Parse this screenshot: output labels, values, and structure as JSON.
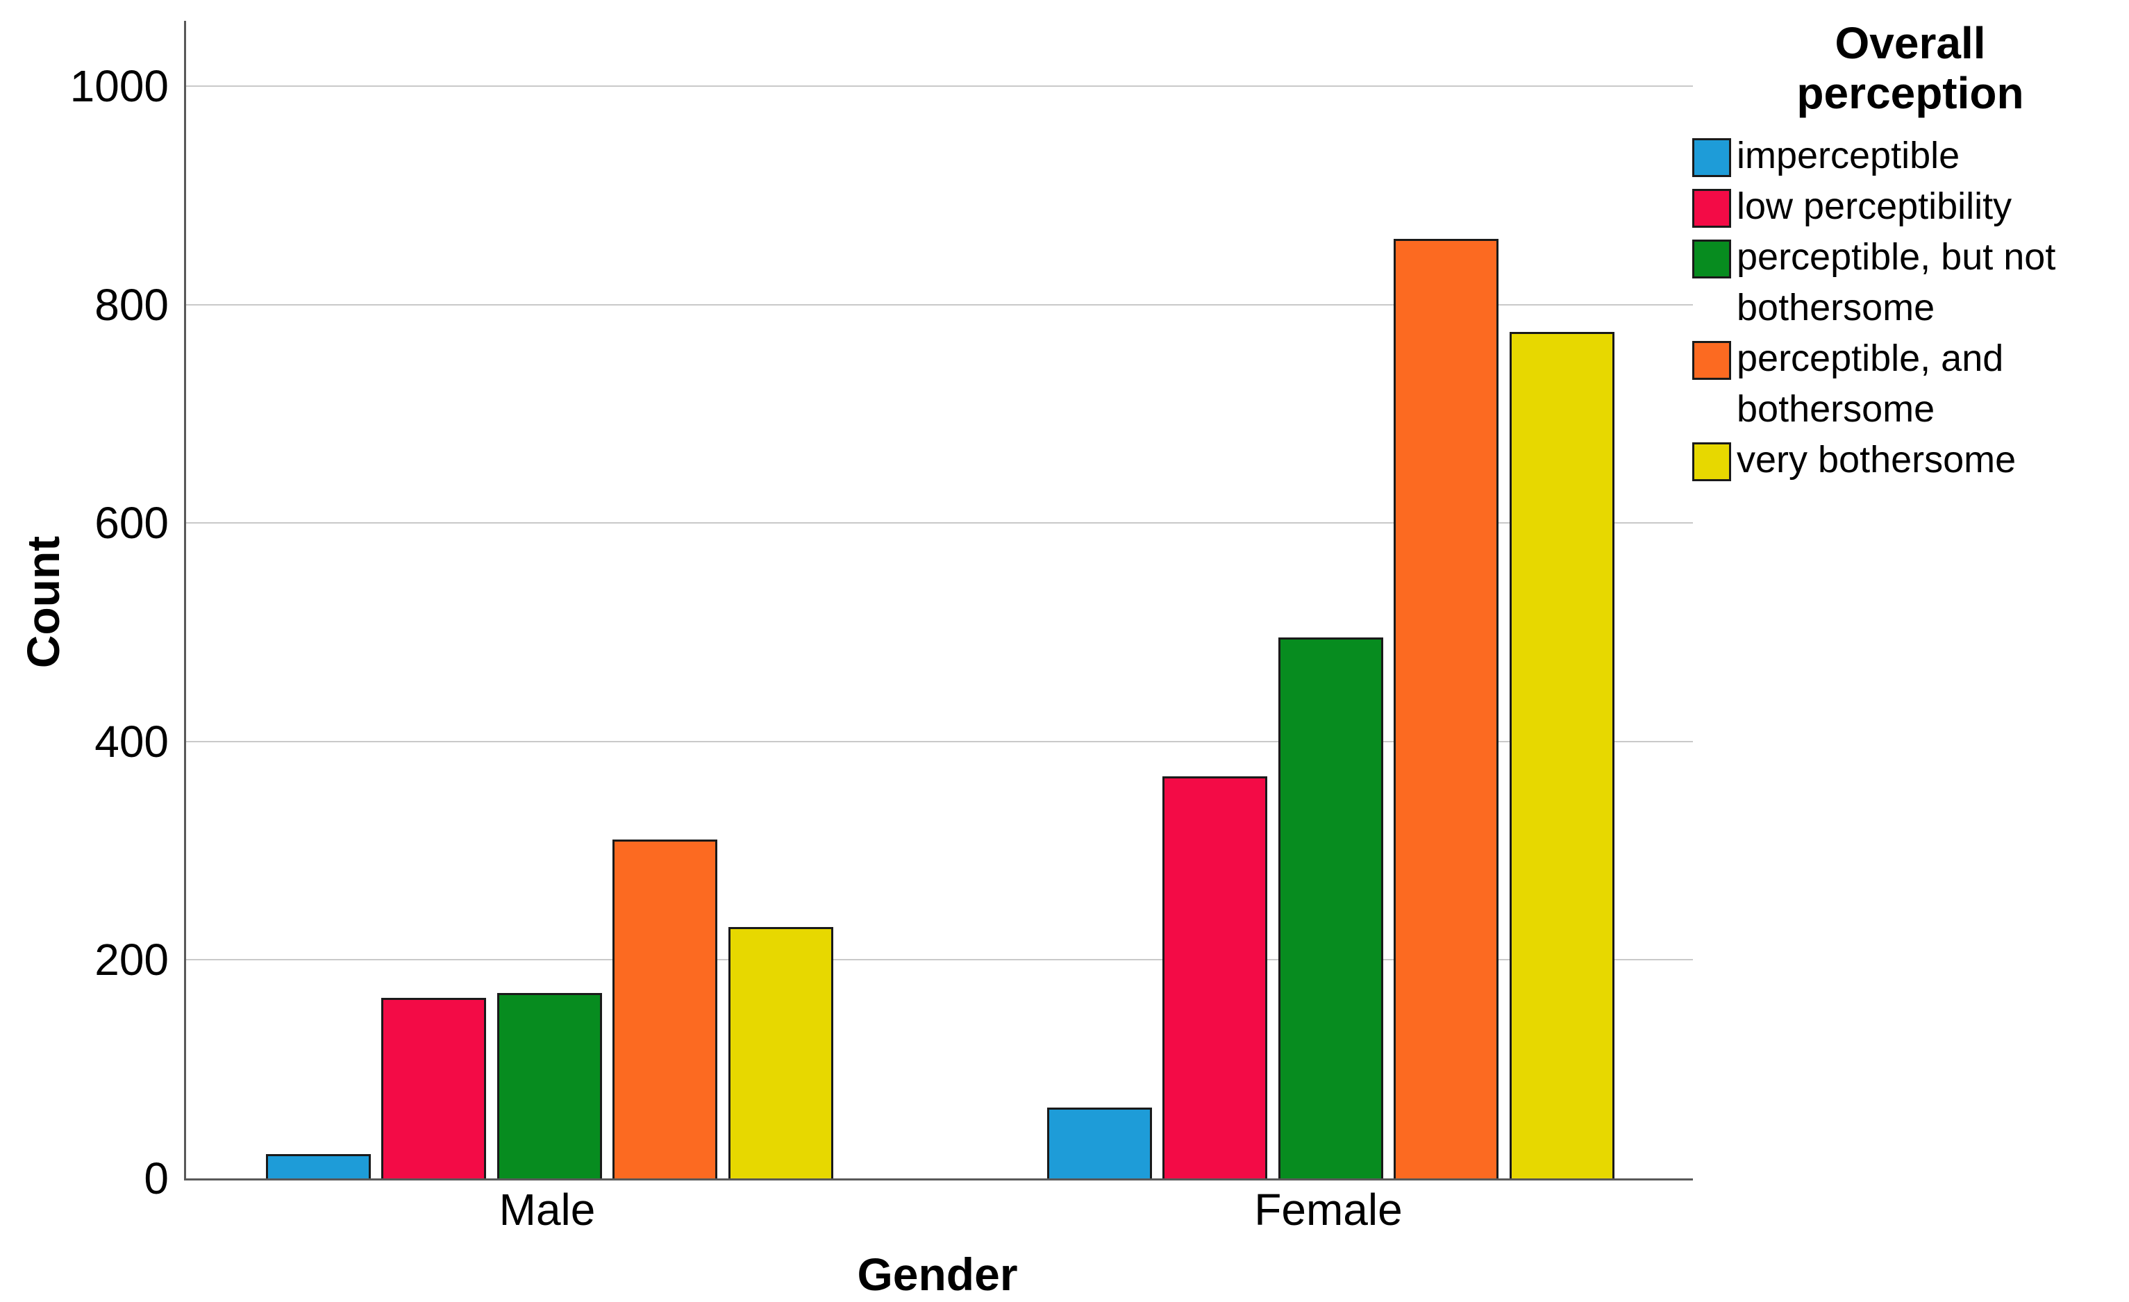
{
  "chart_data": {
    "type": "bar",
    "categories": [
      "Male",
      "Female"
    ],
    "series": [
      {
        "name": "imperceptible",
        "color": "#1E9CD8",
        "values": [
          22,
          65
        ]
      },
      {
        "name": "low perceptibility",
        "color": "#F30B46",
        "values": [
          165,
          368
        ]
      },
      {
        "name": "perceptible, but not bothersome",
        "color": "#078C1F",
        "values": [
          170,
          495
        ]
      },
      {
        "name": "perceptible, and bothersome",
        "color": "#FC6A21",
        "values": [
          310,
          860
        ]
      },
      {
        "name": "very bothersome",
        "color": "#E7D800",
        "values": [
          230,
          775
        ]
      }
    ],
    "xlabel": "Gender",
    "ylabel": "Count",
    "ylim": [
      0,
      1060
    ],
    "yticks": [
      0,
      200,
      400,
      600,
      800,
      1000
    ],
    "grid": "horizontal",
    "legend_title": "Overall\nperception",
    "legend_position": "right"
  },
  "colors": {
    "background": "#FFFFFF",
    "gridline": "#C9C9C9",
    "axis": "#595959",
    "bar_border": "#1A1A1A",
    "text": "#000000"
  }
}
